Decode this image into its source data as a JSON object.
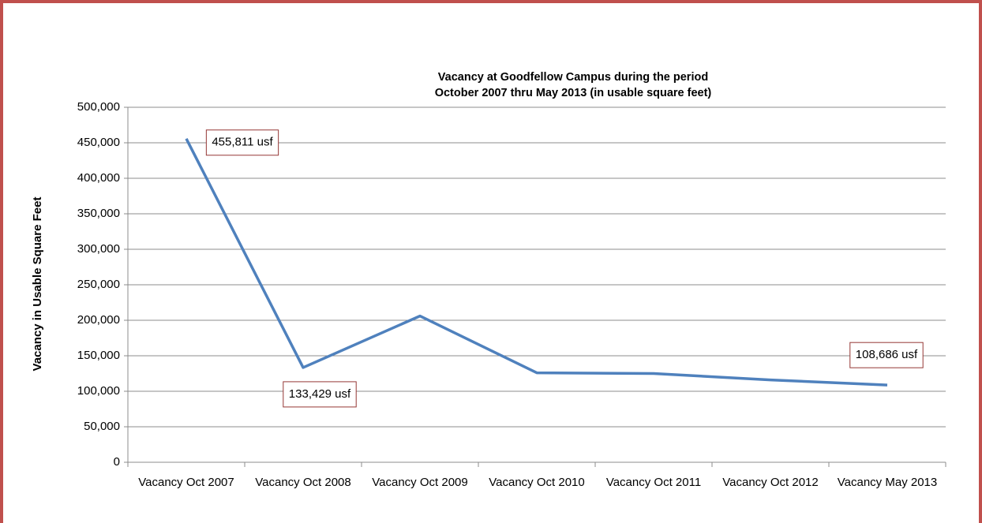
{
  "chart_data": {
    "type": "line",
    "title": "Vacancy at Goodfellow Campus during the period October 2007 thru May 2013 (in usable square feet)",
    "y_label": "Vacancy in Usable Square Feet",
    "categories": [
      "Vacancy Oct 2007",
      "Vacancy Oct 2008",
      "Vacancy Oct 2009",
      "Vacancy Oct 2010",
      "Vacancy Oct 2011",
      "Vacancy Oct 2012",
      "Vacancy May 2013"
    ],
    "series": [
      {
        "name": "Vacancy",
        "color": "#4f81bd",
        "values": [
          455811,
          133429,
          206000,
          126000,
          125000,
          116000,
          108686
        ],
        "value_labels": [
          "455,811 usf",
          "133,429 usf",
          null,
          null,
          null,
          null,
          "108,686 usf"
        ]
      }
    ],
    "ylim": [
      0,
      500000
    ],
    "yticks": [
      0,
      {
        "value": 50000,
        "label": "50,000"
      },
      {
        "value": 100000,
        "label": "100,000"
      },
      {
        "value": 150000,
        "label": "150,000"
      },
      {
        "value": 200000,
        "label": "200,000"
      },
      {
        "value": 250000,
        "label": "250,000"
      },
      {
        "value": 300000,
        "label": "300,000"
      },
      {
        "value": 350000,
        "label": "350,000"
      },
      {
        "value": 400000,
        "label": "400,000"
      },
      {
        "value": 450000,
        "label": "450,000"
      },
      {
        "value": 500000,
        "label": "500,000"
      }
    ],
    "grid": true
  }
}
